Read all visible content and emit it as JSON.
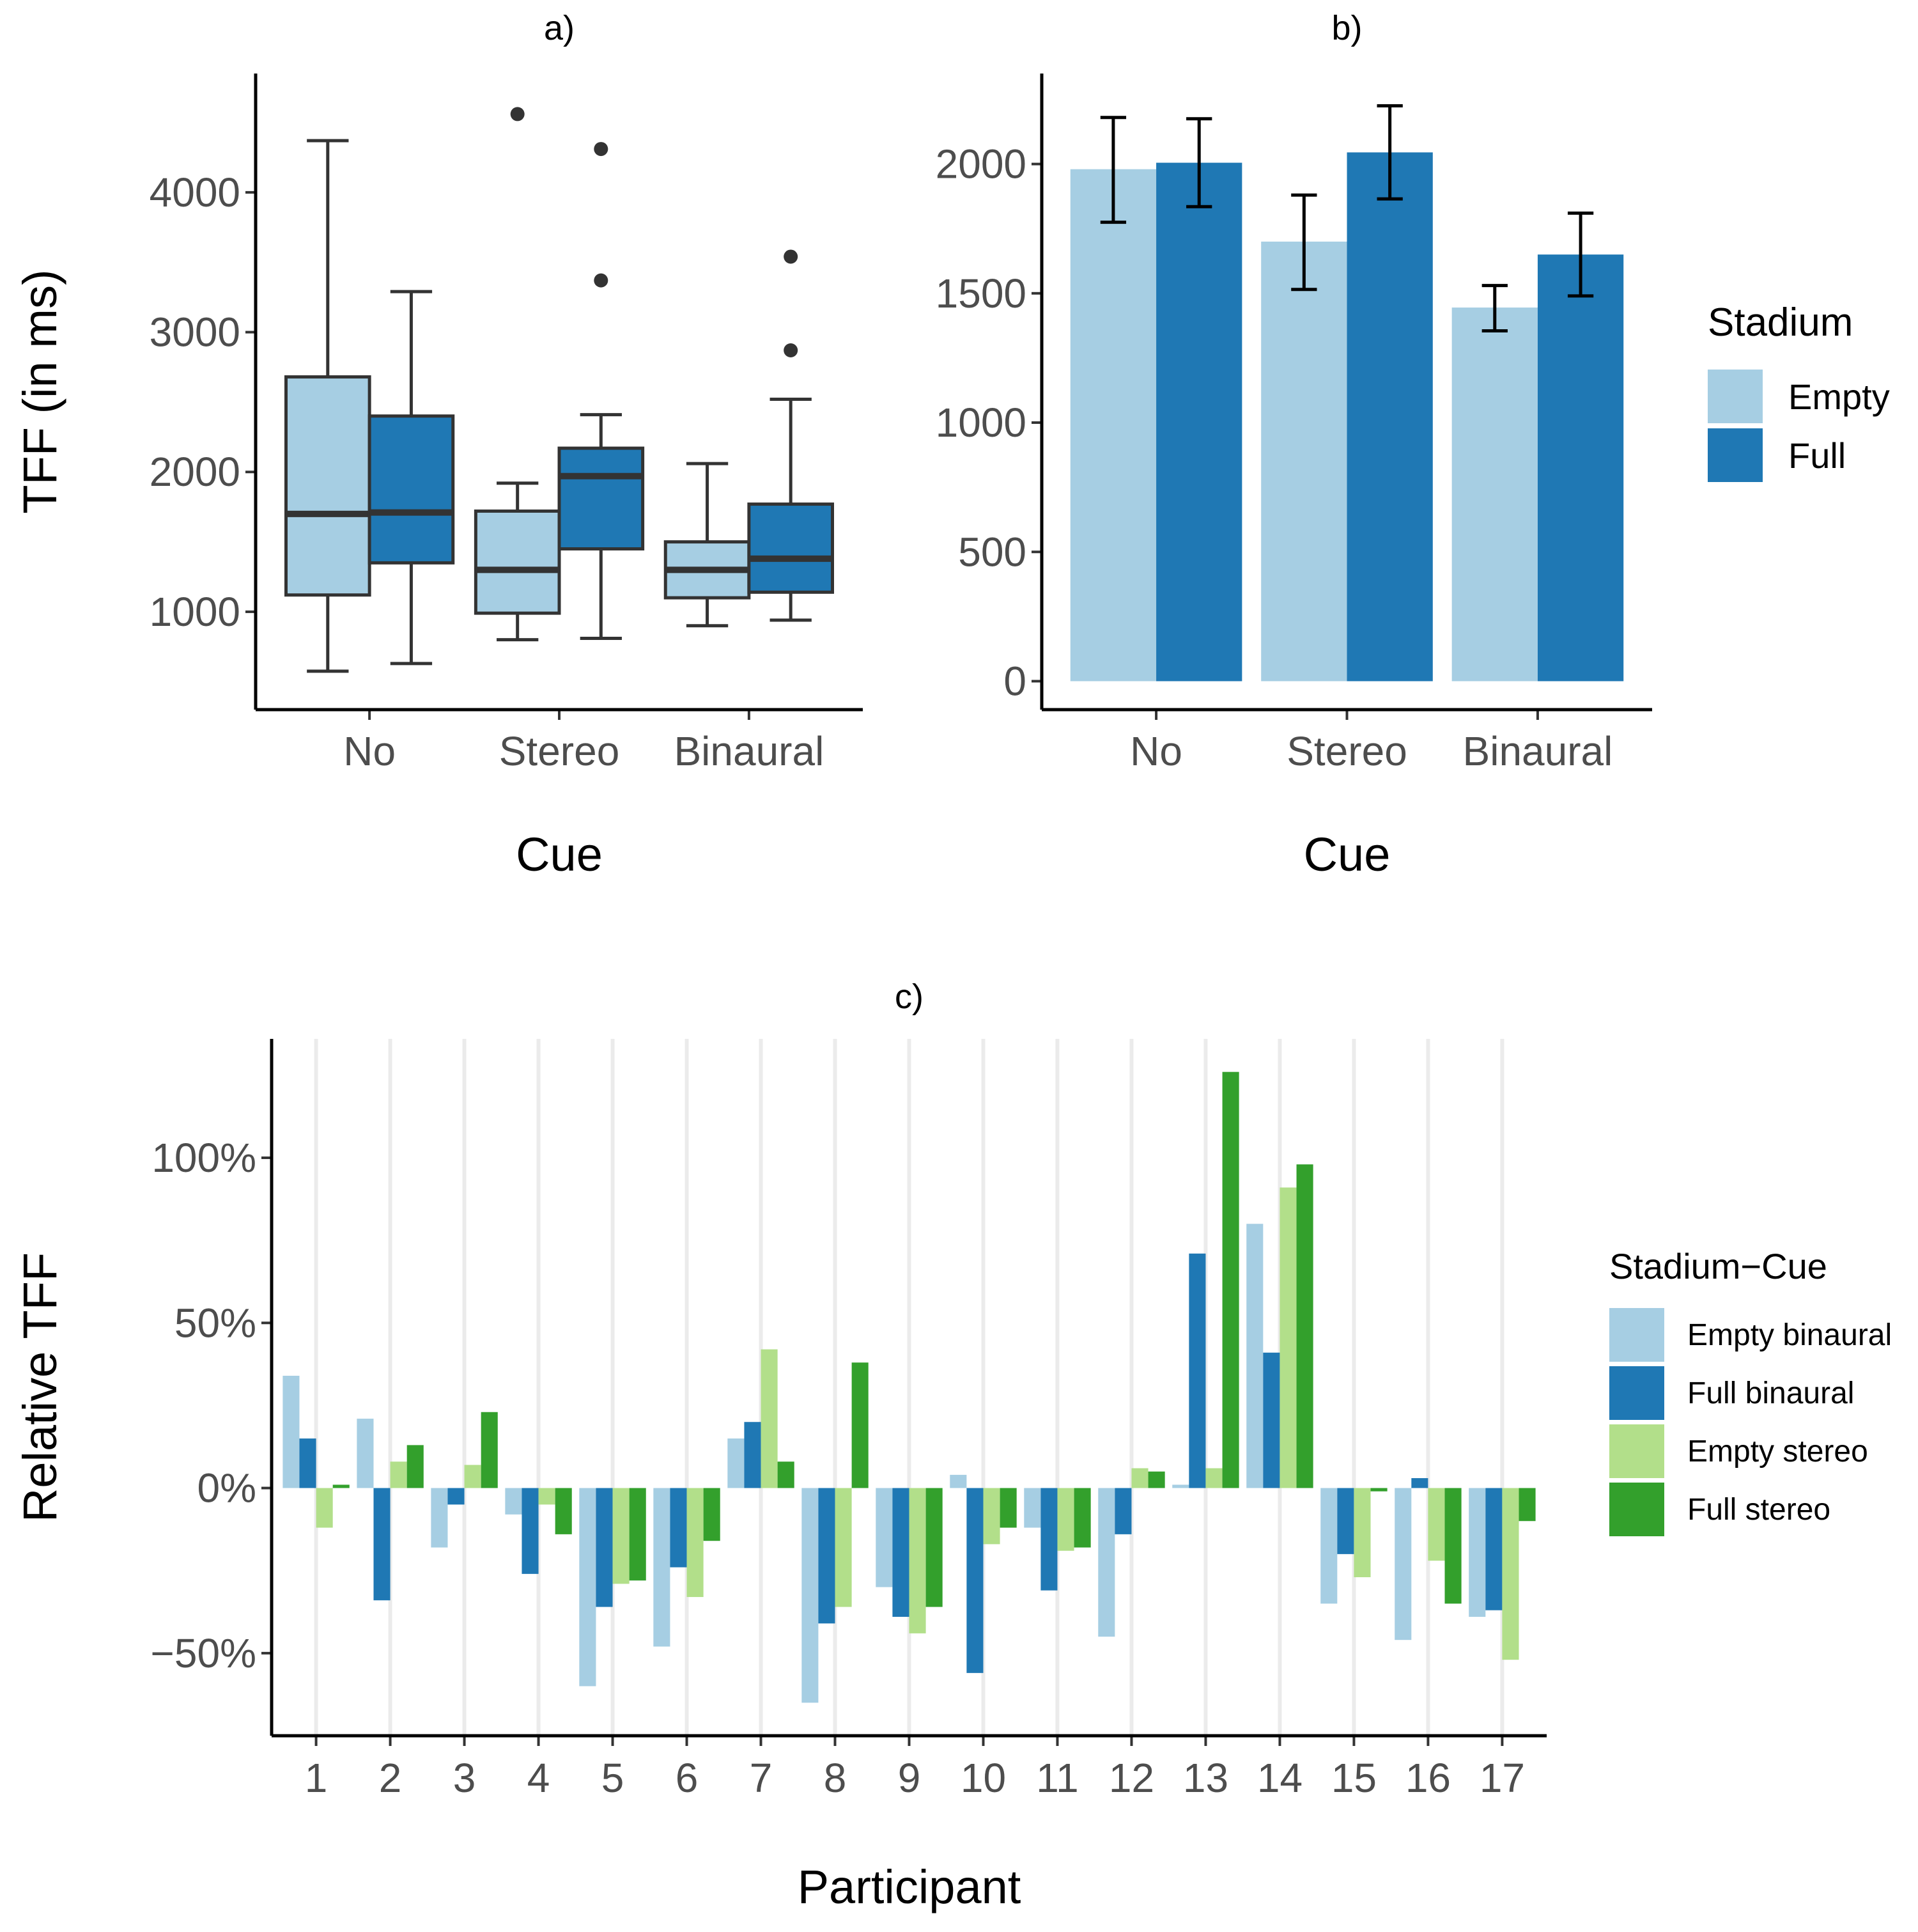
{
  "chart_data": [
    {
      "panel": "a)",
      "type": "boxplot",
      "title": "a)",
      "xlabel": "Cue",
      "ylabel": "TFF (in ms)",
      "categories": [
        "No",
        "Stereo",
        "Binaural"
      ],
      "ylim": [
        300,
        4850
      ],
      "yticks": [
        1000,
        2000,
        3000,
        4000
      ],
      "ytick_labels": [
        "1000",
        "2000",
        "3000",
        "4000"
      ],
      "series": [
        {
          "name": "Empty",
          "color": "#a6cee3",
          "boxes": [
            {
              "min": 575,
              "q1": 1120,
              "median": 1700,
              "q3": 2680,
              "max": 4370,
              "outliers": []
            },
            {
              "min": 800,
              "q1": 990,
              "median": 1300,
              "q3": 1720,
              "max": 1920,
              "outliers": [
                4560
              ]
            },
            {
              "min": 900,
              "q1": 1100,
              "median": 1300,
              "q3": 1500,
              "max": 2060,
              "outliers": []
            }
          ]
        },
        {
          "name": "Full",
          "color": "#1f78b4",
          "boxes": [
            {
              "min": 630,
              "q1": 1350,
              "median": 1710,
              "q3": 2400,
              "max": 3290,
              "outliers": []
            },
            {
              "min": 810,
              "q1": 1450,
              "median": 1970,
              "q3": 2170,
              "max": 2410,
              "outliers": [
                4310,
                3370
              ]
            },
            {
              "min": 940,
              "q1": 1140,
              "median": 1380,
              "q3": 1770,
              "max": 2520,
              "outliers": [
                3540,
                2870
              ]
            }
          ]
        }
      ]
    },
    {
      "panel": "b)",
      "type": "bar",
      "title": "b)",
      "xlabel": "Cue",
      "ylabel": "",
      "categories": [
        "No",
        "Stereo",
        "Binaural"
      ],
      "ylim": [
        -110,
        2350
      ],
      "yticks": [
        0,
        500,
        1000,
        1500,
        2000
      ],
      "ytick_labels": [
        "0",
        "500",
        "1000",
        "1500",
        "2000"
      ],
      "series": [
        {
          "name": "Empty",
          "color": "#a6cee3",
          "values": [
            1980,
            1700,
            1445
          ],
          "err_low": [
            1775,
            1515,
            1355
          ],
          "err_high": [
            2180,
            1880,
            1530
          ]
        },
        {
          "name": "Full",
          "color": "#1f78b4",
          "values": [
            2005,
            2045,
            1650
          ],
          "err_low": [
            1835,
            1865,
            1490
          ],
          "err_high": [
            2175,
            2225,
            1810
          ]
        }
      ],
      "legend": {
        "title": "Stadium",
        "entries": [
          "Empty",
          "Full"
        ],
        "position": "right"
      }
    },
    {
      "panel": "c)",
      "type": "bar",
      "title": "c)",
      "xlabel": "Participant",
      "ylabel": "Relative TFF",
      "categories": [
        "1",
        "2",
        "3",
        "4",
        "5",
        "6",
        "7",
        "8",
        "9",
        "10",
        "11",
        "12",
        "13",
        "14",
        "15",
        "16",
        "17"
      ],
      "ylim": [
        -0.75,
        1.36
      ],
      "yticks": [
        -0.5,
        0,
        0.5,
        1.0
      ],
      "ytick_labels": [
        "−50%",
        "0%",
        "50%",
        "100%"
      ],
      "series": [
        {
          "name": "Empty binaural",
          "color": "#a6cee3",
          "values": [
            0.34,
            0.21,
            -0.18,
            -0.08,
            -0.6,
            -0.48,
            0.15,
            -0.65,
            -0.3,
            0.04,
            -0.12,
            -0.45,
            0.01,
            0.8,
            -0.35,
            -0.46,
            -0.39
          ]
        },
        {
          "name": "Full binaural",
          "color": "#1f78b4",
          "values": [
            0.15,
            -0.34,
            -0.05,
            -0.26,
            -0.36,
            -0.24,
            0.2,
            -0.41,
            -0.39,
            -0.56,
            -0.31,
            -0.14,
            0.71,
            0.41,
            -0.2,
            0.03,
            -0.37
          ]
        },
        {
          "name": "Empty stereo",
          "color": "#b2df8a",
          "values": [
            -0.12,
            0.08,
            0.07,
            -0.05,
            -0.29,
            -0.33,
            0.42,
            -0.36,
            -0.44,
            -0.17,
            -0.19,
            0.06,
            0.06,
            0.91,
            -0.27,
            -0.22,
            -0.52
          ]
        },
        {
          "name": "Full stereo",
          "color": "#33a02c",
          "values": [
            0.01,
            0.13,
            0.23,
            -0.14,
            -0.28,
            -0.16,
            0.08,
            0.38,
            -0.36,
            -0.12,
            -0.18,
            0.05,
            1.26,
            0.98,
            -0.01,
            -0.35,
            -0.1
          ]
        }
      ],
      "legend": {
        "title": "Stadium−Cue",
        "entries": [
          "Empty binaural",
          "Full binaural",
          "Empty stereo",
          "Full stereo"
        ],
        "position": "right"
      }
    }
  ]
}
